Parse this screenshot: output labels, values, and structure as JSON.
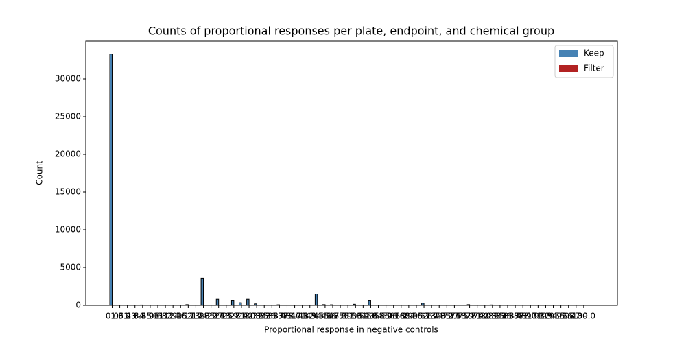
{
  "chart_data": {
    "type": "bar",
    "title": "Counts of proportional responses per plate, endpoint, and chemical group",
    "xlabel": "Proportional response in negative controls",
    "ylabel": "Count",
    "categories": [
      "0.0",
      "1.61",
      "3.23",
      "4.84",
      "6.45",
      "8.06",
      "9.68",
      "11.29",
      "12.9",
      "14.52",
      "16.13",
      "17.74",
      "19.35",
      "20.97",
      "22.58",
      "24.19",
      "25.81",
      "27.42",
      "29.03",
      "30.65",
      "32.26",
      "33.87",
      "35.48",
      "37.1",
      "38.71",
      "40.32",
      "41.94",
      "43.55",
      "45.16",
      "46.77",
      "48.39",
      "50.0",
      "51.61",
      "53.23",
      "54.84",
      "56.45",
      "58.06",
      "59.68",
      "61.29",
      "62.9",
      "64.52",
      "66.13",
      "67.74",
      "69.35",
      "70.97",
      "72.58",
      "74.19",
      "75.81",
      "77.42",
      "79.03",
      "80.65",
      "82.26",
      "83.87",
      "85.48",
      "87.1",
      "88.71",
      "90.32",
      "91.94",
      "93.55",
      "95.16",
      "96.77",
      "98.39",
      "100.0"
    ],
    "series": [
      {
        "name": "Keep",
        "color": "#4682b4",
        "values": [
          33300,
          0,
          0,
          0,
          50,
          0,
          0,
          0,
          0,
          0,
          100,
          0,
          3600,
          0,
          800,
          0,
          600,
          350,
          800,
          200,
          0,
          0,
          80,
          0,
          0,
          0,
          0,
          1500,
          100,
          80,
          0,
          0,
          150,
          0,
          600,
          0,
          0,
          0,
          0,
          0,
          0,
          300,
          0,
          0,
          0,
          0,
          0,
          100,
          0,
          0,
          60,
          0,
          0,
          0,
          0,
          0,
          0,
          0,
          0,
          0,
          0,
          0,
          0
        ]
      },
      {
        "name": "Filter",
        "color": "#b22222",
        "values": [
          0,
          0,
          0,
          0,
          0,
          0,
          0,
          0,
          0,
          0,
          0,
          0,
          0,
          0,
          0,
          0,
          0,
          0,
          0,
          0,
          0,
          0,
          0,
          0,
          0,
          0,
          0,
          0,
          0,
          0,
          0,
          0,
          0,
          0,
          0,
          0,
          0,
          0,
          0,
          0,
          0,
          0,
          0,
          0,
          0,
          0,
          0,
          0,
          0,
          0,
          0,
          0,
          0,
          0,
          0,
          0,
          0,
          0,
          0,
          0,
          0,
          0,
          0
        ]
      }
    ],
    "ylim": [
      0,
      35000
    ],
    "yticks": [
      0,
      5000,
      10000,
      15000,
      20000,
      25000,
      30000
    ],
    "legend": "upper right"
  }
}
